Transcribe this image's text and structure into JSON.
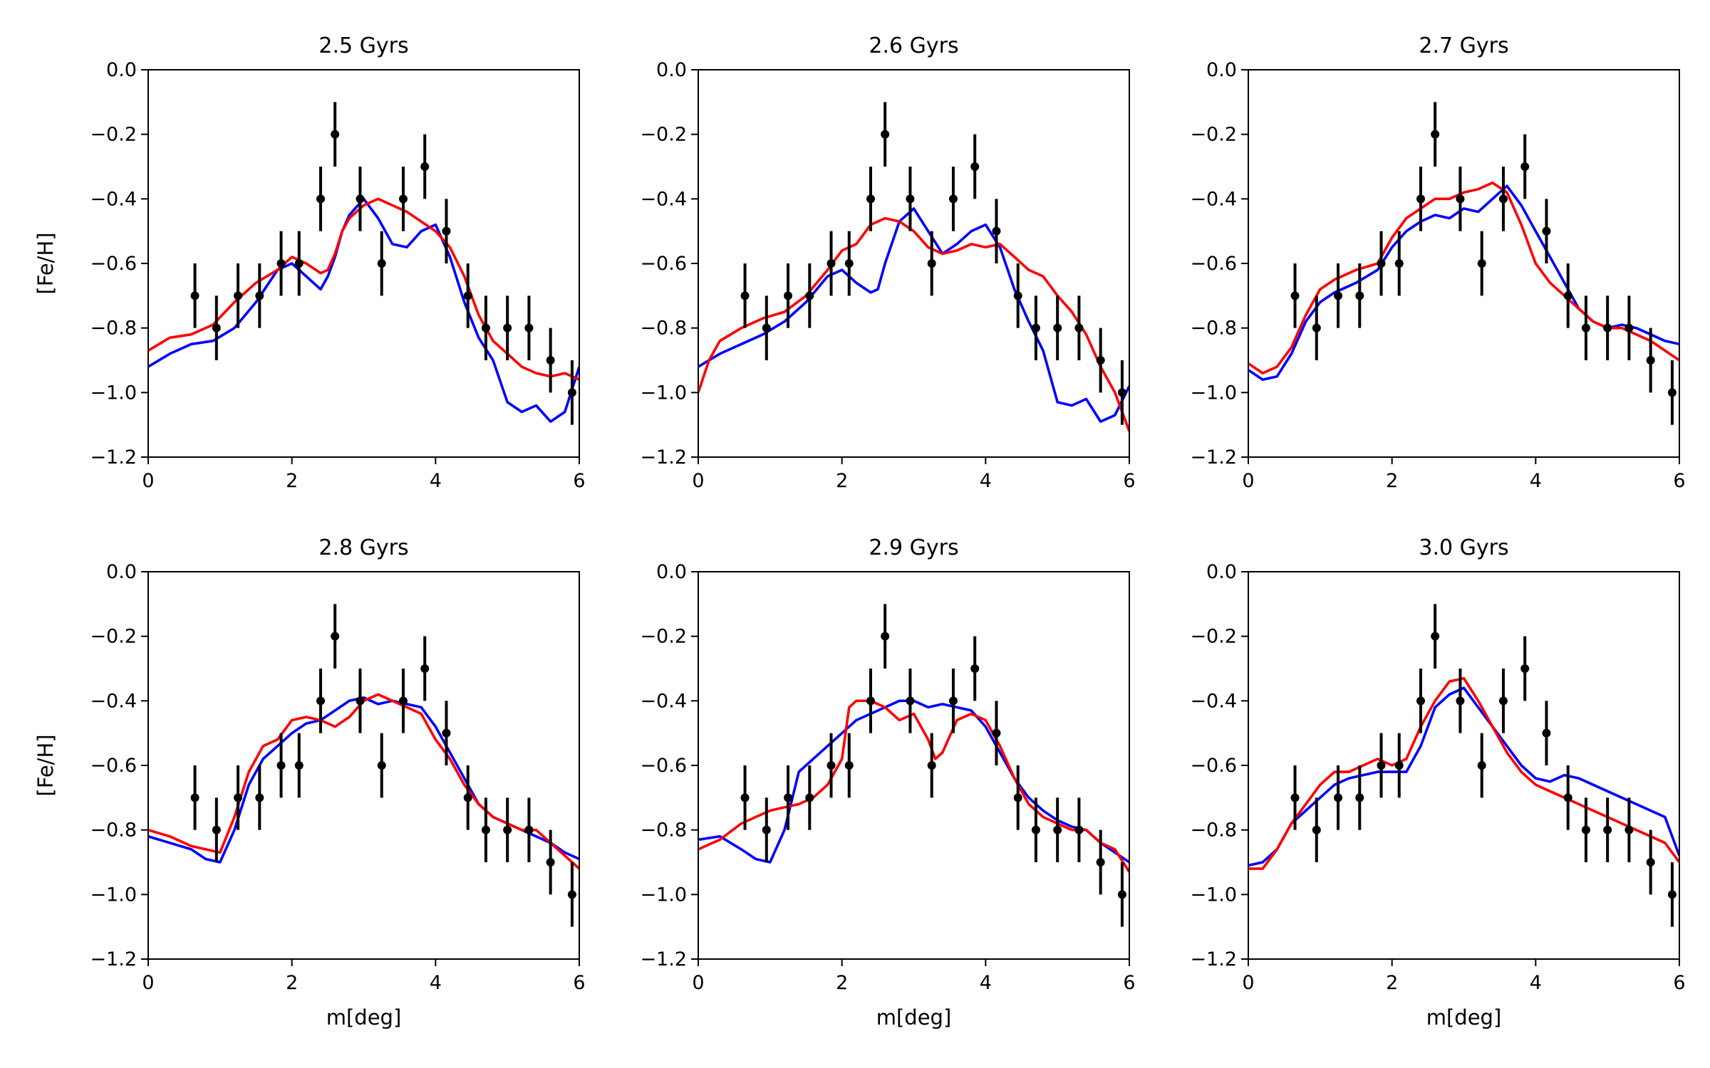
{
  "chart_data": {
    "type": "line",
    "layout": "2x3 grid of panels",
    "xlabel": "m[deg]",
    "ylabel": "[Fe/H]",
    "xlim": [
      0,
      6
    ],
    "ylim": [
      -1.2,
      0.0
    ],
    "x_ticks": [
      0,
      2,
      4,
      6
    ],
    "y_ticks": [
      0.0,
      -0.2,
      -0.4,
      -0.6,
      -0.8,
      -1.0,
      -1.2
    ],
    "x_tick_labels": [
      "0",
      "2",
      "4",
      "6"
    ],
    "y_tick_labels": [
      "0.0",
      "−0.2",
      "−0.4",
      "−0.6",
      "−0.8",
      "−1.0",
      "−1.2"
    ],
    "grid": false,
    "colors": {
      "blue": "#0000ff",
      "red": "#ff0000",
      "obs": "#000000"
    },
    "observations": {
      "x": [
        0.65,
        0.95,
        1.25,
        1.55,
        1.85,
        2.1,
        2.4,
        2.6,
        2.95,
        3.25,
        3.55,
        3.85,
        4.15,
        4.45,
        4.7,
        5.0,
        5.3,
        5.6,
        5.9
      ],
      "y": [
        -0.7,
        -0.8,
        -0.7,
        -0.7,
        -0.6,
        -0.6,
        -0.4,
        -0.2,
        -0.4,
        -0.6,
        -0.4,
        -0.3,
        -0.5,
        -0.7,
        -0.8,
        -0.8,
        -0.8,
        -0.9,
        -1.0
      ],
      "yerr": 0.1
    },
    "panels": [
      {
        "title": "2.5 Gyrs",
        "series": [
          {
            "name": "blue",
            "color": "#0000ff",
            "x": [
              0,
              0.3,
              0.6,
              0.9,
              1.2,
              1.5,
              1.8,
              2.0,
              2.2,
              2.4,
              2.5,
              2.6,
              2.7,
              2.8,
              3.0,
              3.2,
              3.4,
              3.6,
              3.8,
              4.0,
              4.2,
              4.4,
              4.6,
              4.8,
              5.0,
              5.2,
              5.4,
              5.6,
              5.8,
              6.0
            ],
            "y": [
              -0.92,
              -0.88,
              -0.85,
              -0.84,
              -0.8,
              -0.72,
              -0.62,
              -0.6,
              -0.64,
              -0.68,
              -0.64,
              -0.58,
              -0.5,
              -0.45,
              -0.4,
              -0.46,
              -0.54,
              -0.55,
              -0.5,
              -0.48,
              -0.58,
              -0.72,
              -0.83,
              -0.9,
              -1.03,
              -1.06,
              -1.04,
              -1.09,
              -1.06,
              -0.92
            ]
          },
          {
            "name": "red",
            "color": "#ff0000",
            "x": [
              0,
              0.3,
              0.6,
              0.9,
              1.2,
              1.5,
              1.8,
              2.0,
              2.2,
              2.4,
              2.5,
              2.6,
              2.7,
              2.8,
              3.0,
              3.2,
              3.4,
              3.6,
              3.8,
              4.0,
              4.2,
              4.4,
              4.6,
              4.8,
              5.0,
              5.2,
              5.4,
              5.6,
              5.8,
              6.0
            ],
            "y": [
              -0.87,
              -0.83,
              -0.82,
              -0.79,
              -0.72,
              -0.66,
              -0.62,
              -0.58,
              -0.6,
              -0.63,
              -0.62,
              -0.57,
              -0.5,
              -0.46,
              -0.42,
              -0.4,
              -0.42,
              -0.44,
              -0.47,
              -0.5,
              -0.55,
              -0.64,
              -0.76,
              -0.84,
              -0.88,
              -0.92,
              -0.94,
              -0.95,
              -0.94,
              -0.96
            ]
          }
        ]
      },
      {
        "title": "2.6 Gyrs",
        "series": [
          {
            "name": "blue",
            "color": "#0000ff",
            "x": [
              0,
              0.3,
              0.6,
              0.9,
              1.2,
              1.5,
              1.8,
              2.0,
              2.2,
              2.4,
              2.5,
              2.6,
              2.8,
              3.0,
              3.2,
              3.4,
              3.6,
              3.8,
              4.0,
              4.2,
              4.4,
              4.6,
              4.8,
              5.0,
              5.2,
              5.4,
              5.6,
              5.8,
              6.0
            ],
            "y": [
              -0.92,
              -0.88,
              -0.85,
              -0.82,
              -0.78,
              -0.72,
              -0.64,
              -0.62,
              -0.66,
              -0.69,
              -0.68,
              -0.6,
              -0.47,
              -0.43,
              -0.5,
              -0.57,
              -0.54,
              -0.5,
              -0.48,
              -0.55,
              -0.68,
              -0.78,
              -0.87,
              -1.03,
              -1.04,
              -1.02,
              -1.09,
              -1.07,
              -0.98
            ]
          },
          {
            "name": "red",
            "color": "#ff0000",
            "x": [
              0,
              0.15,
              0.3,
              0.6,
              0.9,
              1.2,
              1.5,
              1.8,
              2.0,
              2.2,
              2.4,
              2.6,
              2.8,
              3.0,
              3.2,
              3.4,
              3.6,
              3.8,
              4.0,
              4.2,
              4.4,
              4.6,
              4.8,
              5.0,
              5.2,
              5.4,
              5.6,
              5.8,
              6.0
            ],
            "y": [
              -1.0,
              -0.9,
              -0.84,
              -0.8,
              -0.77,
              -0.75,
              -0.7,
              -0.62,
              -0.56,
              -0.54,
              -0.48,
              -0.46,
              -0.47,
              -0.5,
              -0.55,
              -0.57,
              -0.56,
              -0.54,
              -0.55,
              -0.54,
              -0.58,
              -0.62,
              -0.64,
              -0.7,
              -0.75,
              -0.82,
              -0.92,
              -1.0,
              -1.12
            ]
          }
        ]
      },
      {
        "title": "2.7 Gyrs",
        "series": [
          {
            "name": "blue",
            "color": "#0000ff",
            "x": [
              0,
              0.2,
              0.4,
              0.6,
              0.8,
              1.0,
              1.2,
              1.5,
              1.8,
              2.0,
              2.2,
              2.4,
              2.6,
              2.8,
              3.0,
              3.2,
              3.4,
              3.6,
              3.8,
              4.0,
              4.2,
              4.4,
              4.6,
              4.8,
              5.0,
              5.2,
              5.4,
              5.6,
              5.8,
              6.0
            ],
            "y": [
              -0.93,
              -0.96,
              -0.95,
              -0.88,
              -0.78,
              -0.72,
              -0.69,
              -0.66,
              -0.62,
              -0.55,
              -0.5,
              -0.47,
              -0.45,
              -0.46,
              -0.43,
              -0.44,
              -0.4,
              -0.36,
              -0.42,
              -0.5,
              -0.58,
              -0.66,
              -0.74,
              -0.78,
              -0.8,
              -0.79,
              -0.8,
              -0.82,
              -0.84,
              -0.85
            ]
          },
          {
            "name": "red",
            "color": "#ff0000",
            "x": [
              0,
              0.2,
              0.4,
              0.6,
              0.8,
              1.0,
              1.2,
              1.5,
              1.8,
              2.0,
              2.2,
              2.4,
              2.6,
              2.8,
              3.0,
              3.2,
              3.4,
              3.6,
              3.8,
              4.0,
              4.2,
              4.4,
              4.6,
              4.8,
              5.0,
              5.2,
              5.4,
              5.6,
              5.8,
              6.0
            ],
            "y": [
              -0.91,
              -0.94,
              -0.92,
              -0.86,
              -0.76,
              -0.68,
              -0.65,
              -0.62,
              -0.6,
              -0.52,
              -0.46,
              -0.43,
              -0.4,
              -0.4,
              -0.38,
              -0.37,
              -0.35,
              -0.38,
              -0.48,
              -0.6,
              -0.66,
              -0.7,
              -0.74,
              -0.78,
              -0.8,
              -0.8,
              -0.82,
              -0.84,
              -0.87,
              -0.9
            ]
          }
        ]
      },
      {
        "title": "2.8 Gyrs",
        "series": [
          {
            "name": "blue",
            "color": "#0000ff",
            "x": [
              0,
              0.3,
              0.6,
              0.8,
              1.0,
              1.2,
              1.4,
              1.6,
              1.8,
              2.0,
              2.2,
              2.4,
              2.6,
              2.8,
              3.0,
              3.2,
              3.4,
              3.6,
              3.8,
              4.0,
              4.2,
              4.4,
              4.6,
              4.8,
              5.0,
              5.2,
              5.4,
              5.6,
              5.8,
              6.0
            ],
            "y": [
              -0.82,
              -0.84,
              -0.86,
              -0.89,
              -0.9,
              -0.8,
              -0.66,
              -0.58,
              -0.54,
              -0.5,
              -0.47,
              -0.46,
              -0.43,
              -0.4,
              -0.39,
              -0.41,
              -0.4,
              -0.41,
              -0.42,
              -0.48,
              -0.56,
              -0.64,
              -0.72,
              -0.76,
              -0.78,
              -0.8,
              -0.82,
              -0.84,
              -0.87,
              -0.89
            ]
          },
          {
            "name": "red",
            "color": "#ff0000",
            "x": [
              0,
              0.3,
              0.6,
              0.8,
              1.0,
              1.2,
              1.4,
              1.6,
              1.8,
              2.0,
              2.2,
              2.4,
              2.6,
              2.8,
              3.0,
              3.2,
              3.4,
              3.6,
              3.8,
              4.0,
              4.2,
              4.4,
              4.6,
              4.8,
              5.0,
              5.2,
              5.4,
              5.6,
              5.8,
              6.0
            ],
            "y": [
              -0.8,
              -0.82,
              -0.85,
              -0.86,
              -0.87,
              -0.76,
              -0.62,
              -0.54,
              -0.52,
              -0.46,
              -0.45,
              -0.46,
              -0.48,
              -0.45,
              -0.4,
              -0.38,
              -0.4,
              -0.42,
              -0.44,
              -0.52,
              -0.58,
              -0.66,
              -0.72,
              -0.76,
              -0.78,
              -0.8,
              -0.8,
              -0.84,
              -0.88,
              -0.92
            ]
          }
        ]
      },
      {
        "title": "2.9 Gyrs",
        "series": [
          {
            "name": "blue",
            "color": "#0000ff",
            "x": [
              0,
              0.3,
              0.6,
              0.8,
              1.0,
              1.2,
              1.4,
              1.6,
              1.8,
              2.0,
              2.2,
              2.4,
              2.6,
              2.8,
              3.0,
              3.2,
              3.4,
              3.6,
              3.8,
              4.0,
              4.2,
              4.4,
              4.6,
              4.8,
              5.0,
              5.2,
              5.4,
              5.6,
              5.8,
              6.0
            ],
            "y": [
              -0.83,
              -0.82,
              -0.86,
              -0.89,
              -0.9,
              -0.8,
              -0.62,
              -0.58,
              -0.54,
              -0.5,
              -0.46,
              -0.44,
              -0.42,
              -0.4,
              -0.4,
              -0.42,
              -0.41,
              -0.42,
              -0.43,
              -0.48,
              -0.56,
              -0.64,
              -0.7,
              -0.74,
              -0.77,
              -0.79,
              -0.8,
              -0.84,
              -0.87,
              -0.9
            ]
          },
          {
            "name": "red",
            "color": "#ff0000",
            "x": [
              0,
              0.3,
              0.6,
              0.8,
              1.0,
              1.2,
              1.4,
              1.6,
              1.8,
              2.0,
              2.1,
              2.2,
              2.4,
              2.6,
              2.8,
              3.0,
              3.2,
              3.3,
              3.4,
              3.6,
              3.8,
              4.0,
              4.2,
              4.4,
              4.6,
              4.8,
              5.0,
              5.2,
              5.4,
              5.6,
              5.8,
              6.0
            ],
            "y": [
              -0.86,
              -0.83,
              -0.78,
              -0.76,
              -0.74,
              -0.73,
              -0.72,
              -0.7,
              -0.66,
              -0.58,
              -0.42,
              -0.4,
              -0.4,
              -0.42,
              -0.46,
              -0.44,
              -0.52,
              -0.58,
              -0.56,
              -0.46,
              -0.44,
              -0.46,
              -0.54,
              -0.64,
              -0.72,
              -0.76,
              -0.78,
              -0.8,
              -0.8,
              -0.84,
              -0.86,
              -0.93
            ]
          }
        ]
      },
      {
        "title": "3.0 Gyrs",
        "series": [
          {
            "name": "blue",
            "color": "#0000ff",
            "x": [
              0,
              0.2,
              0.4,
              0.6,
              0.8,
              1.0,
              1.2,
              1.4,
              1.6,
              1.8,
              2.0,
              2.2,
              2.4,
              2.6,
              2.8,
              3.0,
              3.2,
              3.4,
              3.6,
              3.8,
              4.0,
              4.2,
              4.4,
              4.6,
              4.8,
              5.0,
              5.2,
              5.4,
              5.6,
              5.8,
              6.0
            ],
            "y": [
              -0.91,
              -0.9,
              -0.86,
              -0.78,
              -0.74,
              -0.7,
              -0.66,
              -0.64,
              -0.63,
              -0.62,
              -0.62,
              -0.62,
              -0.54,
              -0.42,
              -0.38,
              -0.36,
              -0.42,
              -0.48,
              -0.54,
              -0.6,
              -0.64,
              -0.65,
              -0.63,
              -0.64,
              -0.66,
              -0.68,
              -0.7,
              -0.72,
              -0.74,
              -0.76,
              -0.88
            ]
          },
          {
            "name": "red",
            "color": "#ff0000",
            "x": [
              0,
              0.2,
              0.4,
              0.6,
              0.8,
              1.0,
              1.2,
              1.4,
              1.6,
              1.8,
              2.0,
              2.2,
              2.4,
              2.6,
              2.8,
              3.0,
              3.2,
              3.4,
              3.6,
              3.8,
              4.0,
              4.2,
              4.4,
              4.6,
              4.8,
              5.0,
              5.2,
              5.4,
              5.6,
              5.8,
              6.0
            ],
            "y": [
              -0.92,
              -0.92,
              -0.86,
              -0.78,
              -0.72,
              -0.66,
              -0.62,
              -0.62,
              -0.6,
              -0.58,
              -0.6,
              -0.58,
              -0.48,
              -0.4,
              -0.34,
              -0.33,
              -0.4,
              -0.48,
              -0.56,
              -0.62,
              -0.66,
              -0.68,
              -0.7,
              -0.72,
              -0.74,
              -0.76,
              -0.78,
              -0.8,
              -0.82,
              -0.84,
              -0.9
            ]
          }
        ]
      }
    ]
  }
}
